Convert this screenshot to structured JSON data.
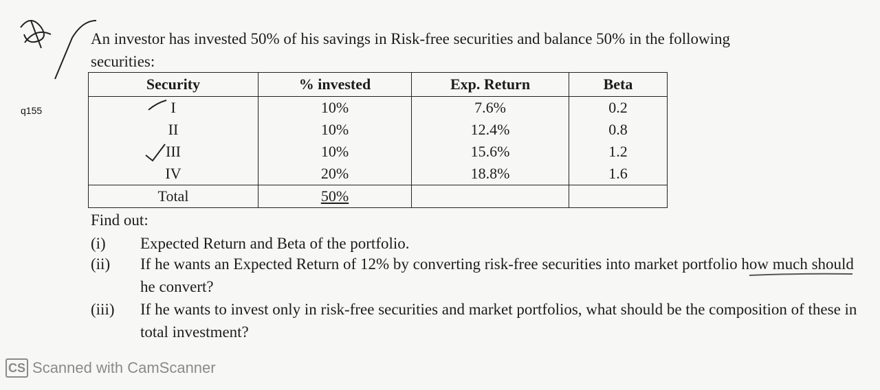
{
  "question_label": "q155",
  "intro": {
    "line1": "An investor has invested 50% of his savings in Risk-free securities and balance 50% in the following",
    "line2": "securities:"
  },
  "table": {
    "headers": [
      "Security",
      "% invested",
      "Exp. Return",
      "Beta"
    ],
    "rows": [
      {
        "security": "I",
        "invested": "10%",
        "exp_return": "7.6%",
        "beta": "0.2"
      },
      {
        "security": "II",
        "invested": "10%",
        "exp_return": "12.4%",
        "beta": "0.8"
      },
      {
        "security": "III",
        "invested": "10%",
        "exp_return": "15.6%",
        "beta": "1.2"
      },
      {
        "security": "IV",
        "invested": "20%",
        "exp_return": "18.8%",
        "beta": "1.6"
      }
    ],
    "total": {
      "label": "Total",
      "invested": "50%",
      "exp_return": "",
      "beta": ""
    }
  },
  "find_out": "Find out:",
  "questions": [
    {
      "num": "(i)",
      "text": "Expected Return and Beta of the portfolio."
    },
    {
      "num": "(ii)",
      "text": "If he wants an Expected Return of 12% by converting risk-free securities into market portfolio how much should he convert?"
    },
    {
      "num": "(iii)",
      "text": "If he wants to invest only in risk-free securities and market portfolios, what should be the composition of these in total investment?"
    }
  ],
  "footer": {
    "logo": "CS",
    "text": "Scanned with CamScanner"
  }
}
